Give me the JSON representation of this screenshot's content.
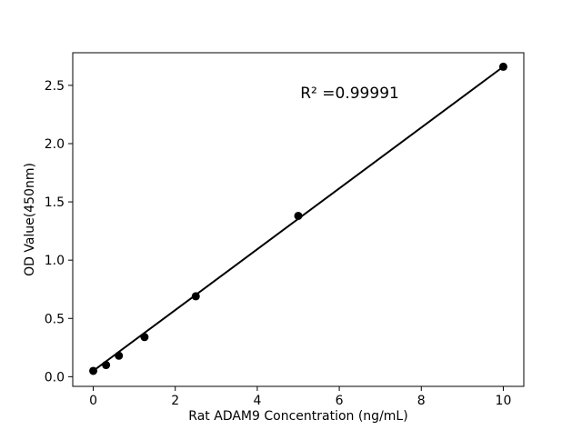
{
  "figure": {
    "background": "#ffffff",
    "foreground": "#000000"
  },
  "chart_data": {
    "type": "scatter",
    "xlabel": "Rat ADAM9 Concentration (ng/mL)",
    "ylabel": "OD Value(450nm)",
    "annotation": {
      "text": "R² =0.99991",
      "x": 5.05,
      "y": 2.39
    },
    "series": [
      {
        "name": "standard-points",
        "x": [
          0,
          0.3125,
          0.625,
          1.25,
          2.5,
          5,
          10
        ],
        "y": [
          0.05,
          0.1,
          0.18,
          0.34,
          0.69,
          1.38,
          2.66
        ],
        "marker": "circle",
        "marker_color": "#000000"
      }
    ],
    "trendline": {
      "type": "linear",
      "x": [
        0,
        10
      ],
      "y": [
        0.05,
        2.66
      ],
      "color": "#000000",
      "r_squared": 0.99991
    },
    "xlim": [
      -0.5,
      10.5
    ],
    "ylim": [
      -0.083,
      2.78
    ],
    "x_tick_values": [
      0,
      2,
      4,
      6,
      8,
      10
    ],
    "x_tick_labels": [
      "0",
      "2",
      "4",
      "6",
      "8",
      "10"
    ],
    "y_tick_values": [
      0.0,
      0.5,
      1.0,
      1.5,
      2.0,
      2.5
    ],
    "y_tick_labels": [
      "0.0",
      "0.5",
      "1.0",
      "1.5",
      "2.0",
      "2.5"
    ],
    "grid": false,
    "legend": false
  }
}
